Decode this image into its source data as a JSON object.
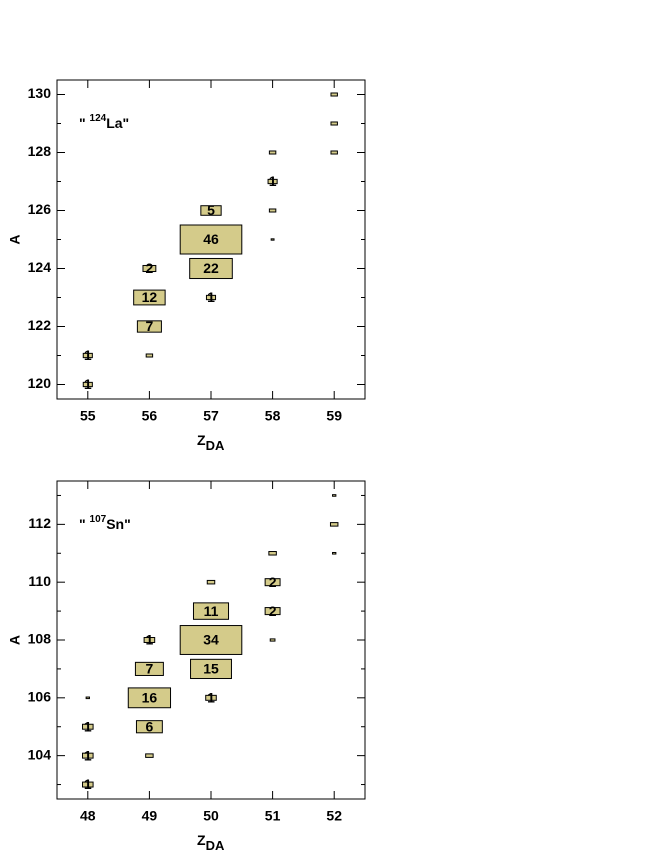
{
  "chart_data": [
    {
      "type": "box2d",
      "annotation": [
        "\" ",
        "124",
        "La\""
      ],
      "ylabel": "A",
      "xlabel": "Z",
      "xlabel_sub": "DA",
      "color": "#d4cb8a",
      "xlim": [
        54.5,
        59.5
      ],
      "xticks": [
        55,
        56,
        57,
        58,
        59
      ],
      "ylim": [
        119.5,
        130.5
      ],
      "yticks": [
        120,
        122,
        124,
        126,
        128,
        130
      ],
      "yminorticks": [
        121,
        123,
        125,
        127,
        129
      ],
      "x": [
        55,
        55,
        56,
        56,
        56,
        56,
        57,
        57,
        57,
        57,
        58,
        58,
        58,
        58,
        59,
        59,
        59
      ],
      "y": [
        120,
        121,
        121,
        122,
        123,
        124,
        123,
        124,
        125,
        126,
        125,
        126,
        127,
        128,
        128,
        129,
        130
      ],
      "values": [
        1,
        1,
        0.5,
        7,
        12,
        2,
        1,
        22,
        46,
        5,
        0.1,
        0.5,
        1,
        0.5,
        0.5,
        0.5,
        0.5
      ],
      "value_labels": [
        "1",
        "1",
        null,
        "7",
        "12",
        "2",
        "1",
        "22",
        "46",
        "5",
        null,
        null,
        "1",
        null,
        null,
        null,
        null
      ]
    },
    {
      "type": "box2d",
      "annotation": [
        "\" ",
        "107",
        "Sn\""
      ],
      "ylabel": "A",
      "xlabel": "Z",
      "xlabel_sub": "DA",
      "color": "#d4cb8a",
      "xlim": [
        47.5,
        52.5
      ],
      "xticks": [
        48,
        49,
        50,
        51,
        52
      ],
      "ylim": [
        102.5,
        113.5
      ],
      "yticks": [
        104,
        106,
        108,
        110,
        112
      ],
      "yminorticks": [
        103,
        105,
        107,
        109,
        111,
        113
      ],
      "x": [
        48,
        48,
        48,
        48,
        49,
        49,
        49,
        49,
        49,
        50,
        50,
        50,
        50,
        50,
        51,
        51,
        51,
        51,
        52,
        52,
        52
      ],
      "y": [
        103,
        104,
        105,
        106,
        104,
        105,
        106,
        107,
        108,
        106,
        107,
        108,
        109,
        110,
        108,
        109,
        110,
        111,
        111,
        112,
        113
      ],
      "values": [
        1,
        1,
        1,
        0.1,
        0.5,
        6,
        16,
        7,
        1,
        1,
        15,
        34,
        11,
        0.5,
        0.2,
        2,
        2,
        0.5,
        0.1,
        0.5,
        0.1
      ],
      "value_labels": [
        "1",
        "1",
        "1",
        null,
        null,
        "6",
        "16",
        "7",
        "1",
        "1",
        "15",
        "34",
        "11",
        null,
        null,
        "2",
        "2",
        null,
        null,
        null,
        null
      ]
    }
  ]
}
